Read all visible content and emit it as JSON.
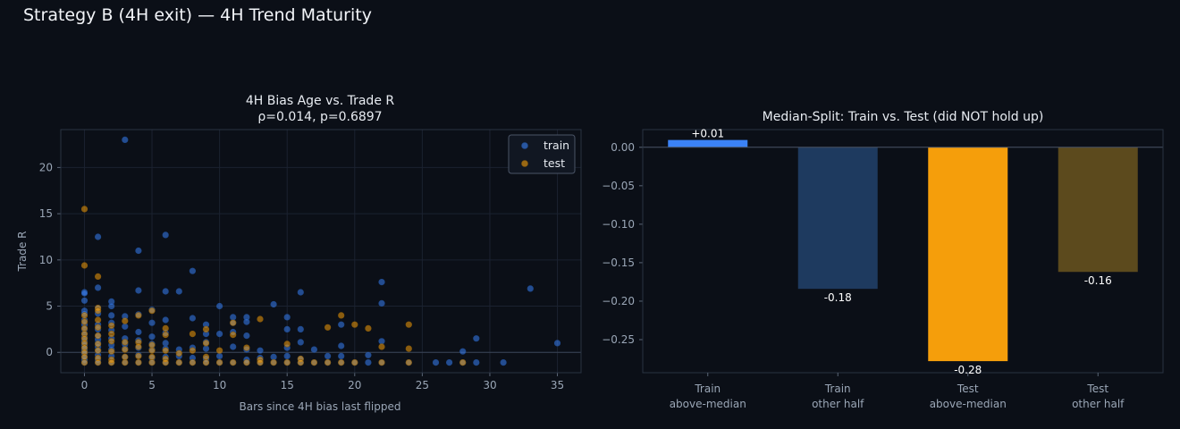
{
  "figure": {
    "suptitle": "Strategy B (4H exit) — 4H Trend Maturity"
  },
  "colors": {
    "background": "#0b0f17",
    "train": "#3b82f6",
    "test": "#f59e0b",
    "train_other": "#1e3a5f",
    "test_other": "#5c4a1d",
    "spine": "#2a3342",
    "grid": "#1b2230"
  },
  "chart_data": [
    {
      "type": "scatter",
      "title": "4H Bias Age vs. Trade R\nρ=0.014, p=0.6897",
      "xlabel": "Bars since 4H bias last flipped",
      "ylabel": "Trade R",
      "xlim": [
        -1.75,
        36.75
      ],
      "ylim": [
        -2.2,
        24.1
      ],
      "xticks": [
        0,
        5,
        10,
        15,
        20,
        25,
        30,
        35
      ],
      "yticks": [
        0,
        5,
        10,
        15,
        20
      ],
      "grid": true,
      "legend": "top-right",
      "series": [
        {
          "name": "train",
          "points": [
            [
              0,
              6.5
            ],
            [
              0,
              6.4
            ],
            [
              0,
              5.6
            ],
            [
              0,
              4.5
            ],
            [
              0,
              4.2
            ],
            [
              0,
              3.5
            ],
            [
              0,
              3.0
            ],
            [
              0,
              2.5
            ],
            [
              0,
              2.0
            ],
            [
              0,
              1.6
            ],
            [
              0,
              1.2
            ],
            [
              0,
              0.8
            ],
            [
              0,
              0.5
            ],
            [
              0,
              0.2
            ],
            [
              0,
              -0.1
            ],
            [
              0,
              -0.5
            ],
            [
              0,
              -0.8
            ],
            [
              0,
              -1.1
            ],
            [
              1,
              12.5
            ],
            [
              1,
              7.0
            ],
            [
              1,
              4.8
            ],
            [
              1,
              4.2
            ],
            [
              1,
              3.0
            ],
            [
              1,
              2.5
            ],
            [
              1,
              1.8
            ],
            [
              1,
              1.4
            ],
            [
              1,
              1.0
            ],
            [
              1,
              0.6
            ],
            [
              1,
              0.2
            ],
            [
              1,
              -0.3
            ],
            [
              1,
              -0.8
            ],
            [
              1,
              -1.1
            ],
            [
              2,
              5.5
            ],
            [
              2,
              5.0
            ],
            [
              2,
              4.0
            ],
            [
              2,
              3.2
            ],
            [
              2,
              2.4
            ],
            [
              2,
              1.5
            ],
            [
              2,
              0.8
            ],
            [
              2,
              0.3
            ],
            [
              2,
              -0.4
            ],
            [
              2,
              -1.1
            ],
            [
              3,
              23.0
            ],
            [
              3,
              3.9
            ],
            [
              3,
              2.8
            ],
            [
              3,
              1.5
            ],
            [
              3,
              0.9
            ],
            [
              3,
              0.4
            ],
            [
              3,
              -0.5
            ],
            [
              3,
              -1.1
            ],
            [
              4,
              11.0
            ],
            [
              4,
              6.7
            ],
            [
              4,
              4.1
            ],
            [
              4,
              2.2
            ],
            [
              4,
              1.3
            ],
            [
              4,
              0.5
            ],
            [
              4,
              -0.3
            ],
            [
              4,
              -1.1
            ],
            [
              5,
              4.6
            ],
            [
              5,
              3.2
            ],
            [
              5,
              1.7
            ],
            [
              5,
              0.9
            ],
            [
              5,
              0.3
            ],
            [
              5,
              -0.6
            ],
            [
              5,
              -1.1
            ],
            [
              6,
              12.7
            ],
            [
              6,
              6.6
            ],
            [
              6,
              3.5
            ],
            [
              6,
              2.1
            ],
            [
              6,
              1.0
            ],
            [
              6,
              0.4
            ],
            [
              6,
              -0.5
            ],
            [
              6,
              -1.1
            ],
            [
              7,
              6.6
            ],
            [
              7,
              0.3
            ],
            [
              7,
              -0.4
            ],
            [
              7,
              -1.1
            ],
            [
              8,
              8.8
            ],
            [
              8,
              3.7
            ],
            [
              8,
              0.5
            ],
            [
              8,
              -0.6
            ],
            [
              8,
              -1.1
            ],
            [
              9,
              3.0
            ],
            [
              9,
              2.0
            ],
            [
              9,
              1.1
            ],
            [
              9,
              0.4
            ],
            [
              9,
              -0.7
            ],
            [
              9,
              -1.1
            ],
            [
              10,
              5.0
            ],
            [
              10,
              2.0
            ],
            [
              10,
              -0.4
            ],
            [
              10,
              -1.1
            ],
            [
              11,
              3.8
            ],
            [
              11,
              3.2
            ],
            [
              11,
              2.2
            ],
            [
              11,
              0.6
            ],
            [
              11,
              -1.1
            ],
            [
              12,
              3.8
            ],
            [
              12,
              3.3
            ],
            [
              12,
              1.8
            ],
            [
              12,
              0.3
            ],
            [
              12,
              -0.8
            ],
            [
              12,
              -1.1
            ],
            [
              13,
              0.2
            ],
            [
              13,
              -0.6
            ],
            [
              13,
              -1.1
            ],
            [
              14,
              5.2
            ],
            [
              14,
              -0.5
            ],
            [
              14,
              -1.1
            ],
            [
              15,
              3.8
            ],
            [
              15,
              2.5
            ],
            [
              15,
              0.5
            ],
            [
              15,
              -0.4
            ],
            [
              15,
              -1.1
            ],
            [
              16,
              6.5
            ],
            [
              16,
              2.5
            ],
            [
              16,
              1.1
            ],
            [
              16,
              -0.7
            ],
            [
              16,
              -1.1
            ],
            [
              17,
              0.3
            ],
            [
              17,
              -1.1
            ],
            [
              18,
              -0.4
            ],
            [
              18,
              -1.1
            ],
            [
              19,
              3.0
            ],
            [
              19,
              0.7
            ],
            [
              19,
              -0.4
            ],
            [
              19,
              -1.1
            ],
            [
              20,
              -1.1
            ],
            [
              21,
              -0.3
            ],
            [
              21,
              -1.1
            ],
            [
              22,
              7.6
            ],
            [
              22,
              5.3
            ],
            [
              22,
              1.2
            ],
            [
              22,
              -1.1
            ],
            [
              24,
              -1.1
            ],
            [
              26,
              -1.1
            ],
            [
              27,
              -1.1
            ],
            [
              28,
              0.1
            ],
            [
              28,
              -1.1
            ],
            [
              29,
              1.5
            ],
            [
              29,
              -1.1
            ],
            [
              31,
              -1.1
            ],
            [
              33,
              6.9
            ],
            [
              35,
              1.0
            ]
          ]
        },
        {
          "name": "test",
          "points": [
            [
              0,
              15.5
            ],
            [
              0,
              9.4
            ],
            [
              0,
              4.0
            ],
            [
              0,
              3.3
            ],
            [
              0,
              2.6
            ],
            [
              0,
              2.0
            ],
            [
              0,
              1.5
            ],
            [
              0,
              1.0
            ],
            [
              0,
              0.5
            ],
            [
              0,
              0.0
            ],
            [
              0,
              -0.5
            ],
            [
              0,
              -1.1
            ],
            [
              1,
              8.2
            ],
            [
              1,
              4.8
            ],
            [
              1,
              4.5
            ],
            [
              1,
              3.5
            ],
            [
              1,
              2.7
            ],
            [
              1,
              1.8
            ],
            [
              1,
              0.9
            ],
            [
              1,
              0.2
            ],
            [
              1,
              -0.6
            ],
            [
              1,
              -1.1
            ],
            [
              2,
              2.9
            ],
            [
              2,
              2.0
            ],
            [
              2,
              1.2
            ],
            [
              2,
              0.1
            ],
            [
              2,
              -0.8
            ],
            [
              2,
              -1.1
            ],
            [
              3,
              3.4
            ],
            [
              3,
              1.1
            ],
            [
              3,
              0.3
            ],
            [
              3,
              -0.5
            ],
            [
              3,
              -1.1
            ],
            [
              4,
              4.0
            ],
            [
              4,
              1.1
            ],
            [
              4,
              0.6
            ],
            [
              4,
              -0.4
            ],
            [
              4,
              -1.1
            ],
            [
              5,
              4.5
            ],
            [
              5,
              0.8
            ],
            [
              5,
              0.2
            ],
            [
              5,
              -0.5
            ],
            [
              5,
              -1.1
            ],
            [
              6,
              2.6
            ],
            [
              6,
              1.9
            ],
            [
              6,
              0.2
            ],
            [
              6,
              -0.7
            ],
            [
              6,
              -1.1
            ],
            [
              7,
              -0.1
            ],
            [
              7,
              -1.1
            ],
            [
              8,
              2.0
            ],
            [
              8,
              0.2
            ],
            [
              8,
              -1.1
            ],
            [
              9,
              2.5
            ],
            [
              9,
              1.0
            ],
            [
              9,
              -0.5
            ],
            [
              9,
              -1.1
            ],
            [
              10,
              0.2
            ],
            [
              10,
              -1.1
            ],
            [
              11,
              3.2
            ],
            [
              11,
              1.9
            ],
            [
              11,
              -1.1
            ],
            [
              12,
              0.5
            ],
            [
              12,
              -1.1
            ],
            [
              13,
              3.6
            ],
            [
              13,
              -0.8
            ],
            [
              13,
              -1.1
            ],
            [
              14,
              -1.1
            ],
            [
              15,
              0.9
            ],
            [
              15,
              -1.1
            ],
            [
              16,
              -0.7
            ],
            [
              16,
              -1.1
            ],
            [
              17,
              -1.1
            ],
            [
              18,
              2.7
            ],
            [
              18,
              -1.1
            ],
            [
              19,
              4.0
            ],
            [
              19,
              -1.1
            ],
            [
              20,
              3.0
            ],
            [
              20,
              -1.1
            ],
            [
              21,
              2.6
            ],
            [
              22,
              0.6
            ],
            [
              22,
              -1.1
            ],
            [
              24,
              3.0
            ],
            [
              24,
              0.4
            ],
            [
              24,
              -1.1
            ],
            [
              28,
              -1.1
            ]
          ]
        }
      ]
    },
    {
      "type": "bar",
      "title": "Median-Split: Train vs. Test (did NOT hold up)",
      "categories": [
        "Train\nabove-median",
        "Train\nother half",
        "Test\nabove-median",
        "Test\nother half"
      ],
      "values": [
        0.01,
        -0.18,
        -0.28,
        -0.16
      ],
      "plot_values": [
        0.0095,
        -0.184,
        -0.278,
        -0.162
      ],
      "labels": [
        "+0.01",
        "-0.18",
        "-0.28",
        "-0.16"
      ],
      "colors": [
        "#3b82f6",
        "#1e3a5f",
        "#f59e0b",
        "#5c4a1d"
      ],
      "ylim": [
        -0.293,
        0.023
      ],
      "yticks": [
        0.0,
        -0.05,
        -0.1,
        -0.15,
        -0.2,
        -0.25
      ],
      "ytick_labels": [
        "0.00",
        "−0.05",
        "−0.10",
        "−0.15",
        "−0.20",
        "−0.25"
      ],
      "xlabel": "",
      "ylabel": "",
      "zero_line": true
    }
  ]
}
